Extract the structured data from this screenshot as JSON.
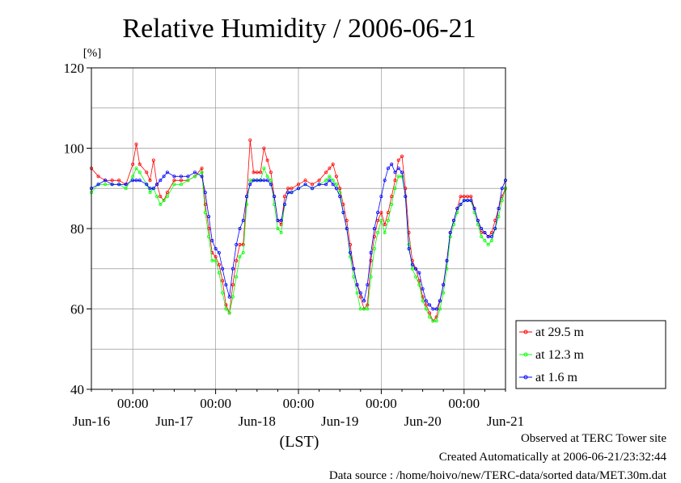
{
  "chart_data": {
    "type": "line",
    "title": "Relative Humidity / 2006-06-21",
    "ylabel": "[%]",
    "xlabel": "(LST)",
    "ylim": [
      40,
      120
    ],
    "yticks": [
      40,
      60,
      80,
      100,
      120
    ],
    "x_unit": "hours since Jun-15 00:00",
    "xlim": [
      12,
      132
    ],
    "x_time_labels": [
      "00:00",
      "00:00",
      "00:00",
      "00:00",
      "00:00"
    ],
    "x_date_labels": [
      "Jun-16",
      "Jun-17",
      "Jun-18",
      "Jun-19",
      "Jun-20",
      "Jun-21"
    ],
    "grid": true,
    "legend_position": "right",
    "series": [
      {
        "name": "at 29.5 m",
        "color": "#ff0000",
        "points": [
          [
            12,
            95
          ],
          [
            14,
            93
          ],
          [
            16,
            92
          ],
          [
            18,
            92
          ],
          [
            20,
            92
          ],
          [
            22,
            91
          ],
          [
            24,
            96
          ],
          [
            25,
            101
          ],
          [
            26,
            96
          ],
          [
            28,
            94
          ],
          [
            29,
            92
          ],
          [
            30,
            97
          ],
          [
            31,
            91
          ],
          [
            32,
            88
          ],
          [
            33,
            87
          ],
          [
            34,
            89
          ],
          [
            36,
            92
          ],
          [
            38,
            92
          ],
          [
            40,
            92
          ],
          [
            42,
            93
          ],
          [
            44,
            95
          ],
          [
            45,
            86
          ],
          [
            46,
            80
          ],
          [
            47,
            74
          ],
          [
            48,
            73
          ],
          [
            49,
            71
          ],
          [
            50,
            67
          ],
          [
            51,
            61
          ],
          [
            52,
            59
          ],
          [
            53,
            66
          ],
          [
            54,
            72
          ],
          [
            55,
            76
          ],
          [
            56,
            76
          ],
          [
            57,
            88
          ],
          [
            58,
            102
          ],
          [
            59,
            94
          ],
          [
            60,
            94
          ],
          [
            61,
            94
          ],
          [
            62,
            100
          ],
          [
            63,
            97
          ],
          [
            64,
            94
          ],
          [
            65,
            88
          ],
          [
            66,
            82
          ],
          [
            67,
            81
          ],
          [
            68,
            88
          ],
          [
            69,
            90
          ],
          [
            70,
            90
          ],
          [
            72,
            91
          ],
          [
            74,
            92
          ],
          [
            76,
            91
          ],
          [
            78,
            92
          ],
          [
            80,
            94
          ],
          [
            81,
            95
          ],
          [
            82,
            96
          ],
          [
            83,
            93
          ],
          [
            84,
            90
          ],
          [
            85,
            86
          ],
          [
            86,
            82
          ],
          [
            87,
            76
          ],
          [
            88,
            70
          ],
          [
            89,
            66
          ],
          [
            90,
            63
          ],
          [
            91,
            60
          ],
          [
            92,
            61
          ],
          [
            93,
            72
          ],
          [
            94,
            78
          ],
          [
            95,
            82
          ],
          [
            96,
            84
          ],
          [
            97,
            81
          ],
          [
            98,
            84
          ],
          [
            99,
            88
          ],
          [
            100,
            92
          ],
          [
            101,
            97
          ],
          [
            102,
            98
          ],
          [
            103,
            90
          ],
          [
            104,
            79
          ],
          [
            105,
            72
          ],
          [
            106,
            70
          ],
          [
            107,
            67
          ],
          [
            108,
            63
          ],
          [
            109,
            61
          ],
          [
            110,
            59
          ],
          [
            111,
            57
          ],
          [
            112,
            58
          ],
          [
            113,
            62
          ],
          [
            114,
            66
          ],
          [
            115,
            72
          ],
          [
            116,
            79
          ],
          [
            117,
            82
          ],
          [
            118,
            85
          ],
          [
            119,
            88
          ],
          [
            120,
            88
          ],
          [
            121,
            88
          ],
          [
            122,
            88
          ],
          [
            123,
            85
          ],
          [
            124,
            82
          ],
          [
            125,
            79
          ],
          [
            126,
            79
          ],
          [
            127,
            78
          ],
          [
            128,
            79
          ],
          [
            129,
            82
          ],
          [
            130,
            85
          ],
          [
            131,
            88
          ],
          [
            132,
            90
          ]
        ]
      },
      {
        "name": "at 12.3 m",
        "color": "#00ff00",
        "points": [
          [
            12,
            89
          ],
          [
            14,
            91
          ],
          [
            16,
            91
          ],
          [
            18,
            91
          ],
          [
            20,
            91
          ],
          [
            22,
            90
          ],
          [
            24,
            93
          ],
          [
            25,
            95
          ],
          [
            26,
            94
          ],
          [
            28,
            91
          ],
          [
            29,
            89
          ],
          [
            30,
            90
          ],
          [
            31,
            88
          ],
          [
            32,
            86
          ],
          [
            33,
            87
          ],
          [
            34,
            88
          ],
          [
            36,
            91
          ],
          [
            38,
            91
          ],
          [
            40,
            92
          ],
          [
            42,
            93
          ],
          [
            44,
            94
          ],
          [
            45,
            84
          ],
          [
            46,
            78
          ],
          [
            47,
            72
          ],
          [
            48,
            72
          ],
          [
            49,
            69
          ],
          [
            50,
            64
          ],
          [
            51,
            60
          ],
          [
            52,
            59
          ],
          [
            53,
            63
          ],
          [
            54,
            68
          ],
          [
            55,
            73
          ],
          [
            56,
            74
          ],
          [
            57,
            86
          ],
          [
            58,
            92
          ],
          [
            59,
            92
          ],
          [
            60,
            92
          ],
          [
            61,
            92
          ],
          [
            62,
            95
          ],
          [
            63,
            93
          ],
          [
            64,
            92
          ],
          [
            65,
            86
          ],
          [
            66,
            80
          ],
          [
            67,
            79
          ],
          [
            68,
            86
          ],
          [
            69,
            89
          ],
          [
            70,
            89
          ],
          [
            72,
            90
          ],
          [
            74,
            91
          ],
          [
            76,
            90
          ],
          [
            78,
            91
          ],
          [
            80,
            92
          ],
          [
            81,
            93
          ],
          [
            82,
            92
          ],
          [
            83,
            91
          ],
          [
            84,
            89
          ],
          [
            85,
            84
          ],
          [
            86,
            80
          ],
          [
            87,
            73
          ],
          [
            88,
            68
          ],
          [
            89,
            64
          ],
          [
            90,
            60
          ],
          [
            91,
            60
          ],
          [
            92,
            60
          ],
          [
            93,
            68
          ],
          [
            94,
            75
          ],
          [
            95,
            79
          ],
          [
            96,
            82
          ],
          [
            97,
            79
          ],
          [
            98,
            82
          ],
          [
            99,
            86
          ],
          [
            100,
            90
          ],
          [
            101,
            93
          ],
          [
            102,
            93
          ],
          [
            103,
            88
          ],
          [
            104,
            76
          ],
          [
            105,
            70
          ],
          [
            106,
            68
          ],
          [
            107,
            66
          ],
          [
            108,
            62
          ],
          [
            109,
            60
          ],
          [
            110,
            58
          ],
          [
            111,
            57
          ],
          [
            112,
            57
          ],
          [
            113,
            60
          ],
          [
            114,
            64
          ],
          [
            115,
            70
          ],
          [
            116,
            78
          ],
          [
            117,
            81
          ],
          [
            118,
            84
          ],
          [
            119,
            86
          ],
          [
            120,
            87
          ],
          [
            121,
            87
          ],
          [
            122,
            87
          ],
          [
            123,
            84
          ],
          [
            124,
            81
          ],
          [
            125,
            78
          ],
          [
            126,
            77
          ],
          [
            127,
            76
          ],
          [
            128,
            77
          ],
          [
            129,
            80
          ],
          [
            130,
            83
          ],
          [
            131,
            87
          ],
          [
            132,
            90
          ]
        ]
      },
      {
        "name": "at 1.6 m",
        "color": "#0000ff",
        "points": [
          [
            12,
            90
          ],
          [
            14,
            91
          ],
          [
            16,
            92
          ],
          [
            18,
            91
          ],
          [
            20,
            91
          ],
          [
            22,
            91
          ],
          [
            24,
            92
          ],
          [
            25,
            92
          ],
          [
            26,
            92
          ],
          [
            28,
            91
          ],
          [
            29,
            90
          ],
          [
            30,
            90
          ],
          [
            31,
            91
          ],
          [
            32,
            92
          ],
          [
            33,
            93
          ],
          [
            34,
            94
          ],
          [
            36,
            93
          ],
          [
            38,
            93
          ],
          [
            40,
            93
          ],
          [
            42,
            94
          ],
          [
            44,
            93
          ],
          [
            45,
            89
          ],
          [
            46,
            83
          ],
          [
            47,
            77
          ],
          [
            48,
            75
          ],
          [
            49,
            74
          ],
          [
            50,
            70
          ],
          [
            51,
            66
          ],
          [
            52,
            63
          ],
          [
            53,
            70
          ],
          [
            54,
            76
          ],
          [
            55,
            80
          ],
          [
            56,
            82
          ],
          [
            57,
            88
          ],
          [
            58,
            91
          ],
          [
            59,
            92
          ],
          [
            60,
            92
          ],
          [
            61,
            92
          ],
          [
            62,
            92
          ],
          [
            63,
            92
          ],
          [
            64,
            91
          ],
          [
            65,
            88
          ],
          [
            66,
            82
          ],
          [
            67,
            82
          ],
          [
            68,
            86
          ],
          [
            69,
            89
          ],
          [
            70,
            89
          ],
          [
            72,
            90
          ],
          [
            74,
            91
          ],
          [
            76,
            90
          ],
          [
            78,
            91
          ],
          [
            80,
            91
          ],
          [
            81,
            92
          ],
          [
            82,
            91
          ],
          [
            83,
            90
          ],
          [
            84,
            88
          ],
          [
            85,
            84
          ],
          [
            86,
            80
          ],
          [
            87,
            74
          ],
          [
            88,
            70
          ],
          [
            89,
            66
          ],
          [
            90,
            64
          ],
          [
            91,
            62
          ],
          [
            92,
            66
          ],
          [
            93,
            74
          ],
          [
            94,
            80
          ],
          [
            95,
            84
          ],
          [
            96,
            88
          ],
          [
            97,
            92
          ],
          [
            98,
            95
          ],
          [
            99,
            96
          ],
          [
            100,
            94
          ],
          [
            101,
            95
          ],
          [
            102,
            94
          ],
          [
            103,
            88
          ],
          [
            104,
            75
          ],
          [
            105,
            71
          ],
          [
            106,
            70
          ],
          [
            107,
            69
          ],
          [
            108,
            65
          ],
          [
            109,
            62
          ],
          [
            110,
            61
          ],
          [
            111,
            60
          ],
          [
            112,
            60
          ],
          [
            113,
            62
          ],
          [
            114,
            66
          ],
          [
            115,
            72
          ],
          [
            116,
            79
          ],
          [
            117,
            82
          ],
          [
            118,
            85
          ],
          [
            119,
            86
          ],
          [
            120,
            87
          ],
          [
            121,
            87
          ],
          [
            122,
            87
          ],
          [
            123,
            85
          ],
          [
            124,
            82
          ],
          [
            125,
            80
          ],
          [
            126,
            79
          ],
          [
            127,
            78
          ],
          [
            128,
            78
          ],
          [
            129,
            80
          ],
          [
            130,
            85
          ],
          [
            131,
            90
          ],
          [
            132,
            92
          ]
        ]
      }
    ]
  },
  "footer": {
    "line1": "Observed at TERC Tower site",
    "line2": "Created Automatically at 2006-06-21/23:32:44",
    "line3": "Data source : /home/hoivo/new/TERC-data/sorted  data/MET.30m.dat"
  }
}
